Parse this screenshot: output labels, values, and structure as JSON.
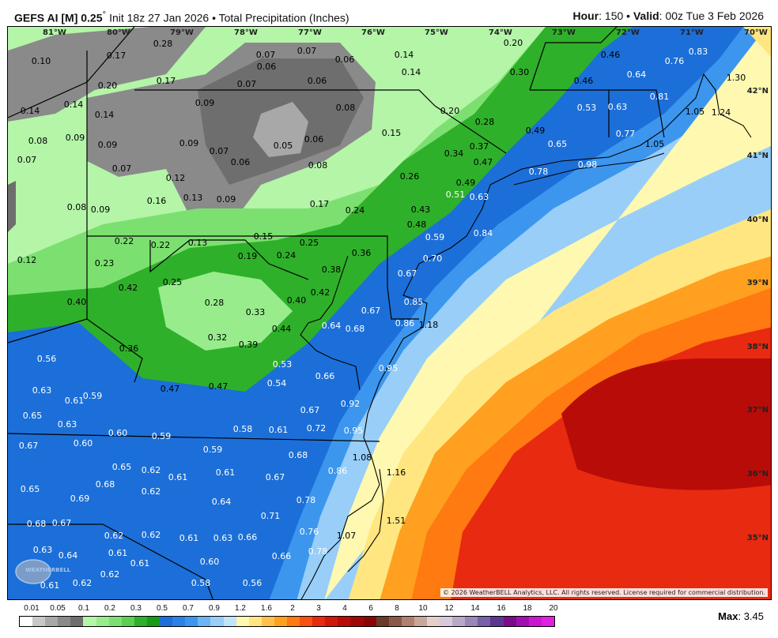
{
  "header": {
    "model": "GEFS AI [M] 0.25",
    "degree": "°",
    "init": " Init 18z 27 Jan 2026 • Total Precipitation (Inches)",
    "hour_label": "Hour",
    "hour": ": 150 • ",
    "valid_label": "Valid",
    "valid": ": 00z Tue 3 Feb 2026"
  },
  "map": {
    "longitudes": [
      "81°W",
      "80°W",
      "79°W",
      "78°W",
      "77°W",
      "76°W",
      "75°W",
      "74°W",
      "73°W",
      "72°W",
      "71°W",
      "70°W"
    ],
    "latitudes": [
      "42°N",
      "41°N",
      "40°N",
      "39°N",
      "38°N",
      "37°N",
      "36°N",
      "35°N"
    ],
    "values": [
      "0.28",
      "0.17",
      "0.10",
      "0.20",
      "0.17",
      "0.07",
      "0.06",
      "0.07",
      "0.06",
      "0.07",
      "0.06",
      "0.14",
      "0.14",
      "0.20",
      "0.30",
      "0.46",
      "0.76",
      "0.83",
      "0.46",
      "0.64",
      "0.14",
      "0.14",
      "0.14",
      "0.09",
      "0.08",
      "0.20",
      "0.28",
      "0.53",
      "0.63",
      "0.81",
      "1.30",
      "1.05",
      "1.24",
      "0.08",
      "0.09",
      "0.09",
      "0.09",
      "0.07",
      "0.05",
      "0.06",
      "0.15",
      "0.49",
      "0.77",
      "0.65",
      "1.05",
      "0.07",
      "0.07",
      "0.06",
      "0.08",
      "0.34",
      "0.37",
      "0.47",
      "0.78",
      "0.98",
      "0.12",
      "0.26",
      "0.49",
      "0.51",
      "0.63",
      "0.16",
      "0.13",
      "0.09",
      "0.17",
      "0.24",
      "0.43",
      "0.08",
      "0.09",
      "0.48",
      "0.84",
      "0.22",
      "0.22",
      "0.13",
      "0.15",
      "0.25",
      "0.59",
      "0.12",
      "0.23",
      "0.19",
      "0.24",
      "0.36",
      "0.70",
      "0.42",
      "0.25",
      "0.38",
      "0.67",
      "0.40",
      "0.28",
      "0.33",
      "0.40",
      "0.42",
      "0.67",
      "0.85",
      "0.86",
      "1.18",
      "0.44",
      "0.64",
      "0.68",
      "0.36",
      "0.32",
      "0.39",
      "0.56",
      "0.53",
      "0.95",
      "0.66",
      "0.47",
      "0.47",
      "0.54",
      "0.63",
      "0.59",
      "0.61",
      "0.92",
      "0.67",
      "0.65",
      "0.63",
      "0.58",
      "0.61",
      "0.72",
      "0.95",
      "0.60",
      "0.59",
      "0.67",
      "0.60",
      "0.59",
      "0.68",
      "1.08",
      "0.65",
      "0.62",
      "0.61",
      "0.61",
      "0.67",
      "0.86",
      "1.16",
      "0.65",
      "0.68",
      "0.69",
      "0.62",
      "0.64",
      "0.78",
      "0.71",
      "1.51",
      "0.68",
      "0.67",
      "0.76",
      "1.07",
      "0.62",
      "0.62",
      "0.61",
      "0.63",
      "0.66",
      "0.63",
      "0.64",
      "0.61",
      "0.61",
      "0.60",
      "0.78",
      "0.66",
      "0.62",
      "0.61",
      "0.62",
      "0.58",
      "0.56"
    ],
    "logo_text": "WeatherBELL",
    "copyright": "© 2026 WeatherBELL Analytics, LLC. All rights reserved. License required for commercial distribution."
  },
  "colorbar": {
    "ticks": [
      "0.01",
      "0.05",
      "0.1",
      "0.2",
      "0.3",
      "0.5",
      "0.7",
      "0.9",
      "1.2",
      "1.6",
      "2",
      "3",
      "4",
      "6",
      "8",
      "10",
      "12",
      "14",
      "16",
      "18",
      "20"
    ],
    "colors": [
      "#ffffff",
      "#c8c8c8",
      "#a8a8a8",
      "#8a8a8a",
      "#6e6e6e",
      "#b4f5a8",
      "#98ec8c",
      "#7ce070",
      "#5ccf52",
      "#2fb02a",
      "#1a9a1a",
      "#1c6fd8",
      "#2a82e6",
      "#3c96ee",
      "#6cb4f4",
      "#98cef8",
      "#c0e4fa",
      "#fff8b0",
      "#ffe680",
      "#ffc050",
      "#ffa020",
      "#ff7a10",
      "#f85010",
      "#e82a10",
      "#d01808",
      "#b80c08",
      "#a00808",
      "#8a0606",
      "#6a3a2a",
      "#8a5a48",
      "#b08070",
      "#c8a898",
      "#e4d0c8",
      "#d8c8d8",
      "#b8a8c8",
      "#9888b8",
      "#7860a8",
      "#5a3890",
      "#7a0c8a",
      "#a010b0",
      "#c818d0",
      "#e020e0"
    ],
    "max_label": "Max",
    "max_value": ": 3.45"
  }
}
